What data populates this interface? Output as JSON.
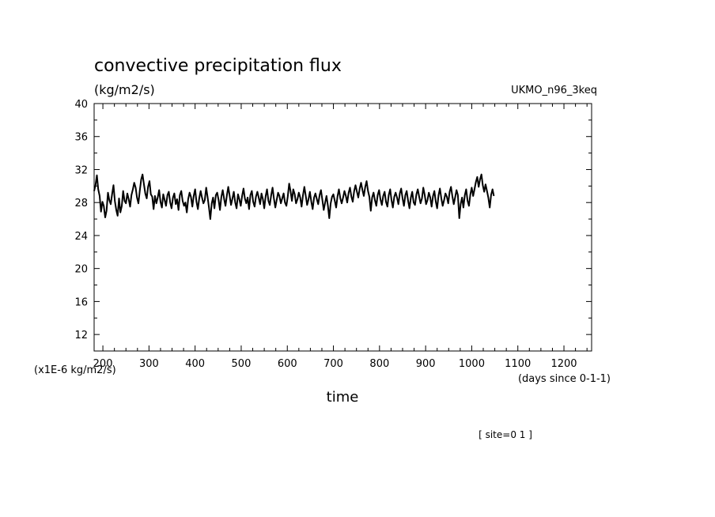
{
  "chart_data": {
    "type": "line",
    "title": "convective precipitation flux",
    "units": "(kg/m2/s)",
    "model": "UKMO_n96_3keq",
    "y_scale_note": "(x1E-6 kg/m2/s)",
    "x_unit_note": "(days since 0-1-1)",
    "xlabel": "time",
    "site_note": "[ site=0 1 ]",
    "xlim": [
      181,
      1260
    ],
    "ylim": [
      10,
      40
    ],
    "x_ticks": [
      200,
      300,
      400,
      500,
      600,
      700,
      800,
      900,
      1000,
      1100,
      1200
    ],
    "y_ticks": [
      12,
      16,
      20,
      24,
      28,
      32,
      36,
      40
    ],
    "series": [
      {
        "x_start": 181,
        "x_step": 3,
        "values": [
          29.4,
          30.1,
          31.3,
          29.6,
          28.8,
          26.9,
          28.1,
          27.6,
          26.2,
          27.0,
          29.2,
          28.3,
          27.8,
          29.0,
          30.1,
          28.2,
          27.1,
          26.4,
          28.5,
          26.8,
          27.6,
          29.4,
          28.2,
          27.9,
          29.1,
          28.4,
          27.5,
          28.9,
          29.6,
          30.4,
          29.8,
          28.6,
          27.9,
          29.4,
          30.8,
          31.4,
          30.2,
          29.1,
          28.5,
          29.9,
          30.6,
          29.0,
          28.7,
          27.2,
          28.8,
          27.9,
          28.6,
          29.5,
          28.1,
          27.4,
          29.0,
          28.3,
          27.6,
          28.9,
          29.3,
          28.0,
          27.3,
          28.6,
          29.1,
          27.8,
          28.4,
          27.1,
          28.9,
          29.4,
          28.2,
          27.6,
          28.0,
          26.8,
          28.4,
          29.2,
          28.7,
          27.5,
          28.8,
          29.6,
          28.1,
          27.2,
          28.5,
          29.4,
          28.6,
          27.9,
          28.3,
          29.8,
          28.7,
          27.4,
          26.0,
          27.9,
          28.6,
          27.3,
          28.9,
          29.2,
          28.3,
          27.1,
          28.7,
          29.5,
          28.4,
          27.6,
          28.9,
          29.9,
          28.8,
          27.7,
          28.5,
          29.3,
          28.0,
          27.3,
          29.0,
          28.4,
          27.6,
          28.8,
          29.7,
          28.5,
          27.9,
          28.6,
          27.2,
          28.9,
          29.4,
          28.1,
          27.5,
          28.7,
          29.3,
          28.6,
          27.8,
          29.1,
          28.4,
          27.3,
          28.8,
          29.6,
          28.2,
          27.7,
          28.9,
          29.8,
          28.5,
          27.4,
          28.3,
          29.2,
          28.8,
          27.9,
          28.5,
          29.1,
          28.0,
          27.6,
          28.7,
          30.3,
          29.4,
          28.2,
          29.6,
          29.0,
          27.9,
          28.4,
          29.2,
          28.6,
          27.5,
          28.9,
          29.9,
          28.8,
          27.7,
          28.4,
          29.3,
          28.1,
          27.2,
          28.6,
          29.1,
          28.4,
          27.8,
          28.9,
          29.5,
          28.3,
          27.1,
          28.0,
          28.8,
          27.6,
          26.1,
          27.9,
          28.7,
          29.0,
          28.2,
          27.4,
          28.8,
          29.6,
          28.5,
          27.9,
          28.6,
          29.4,
          28.8,
          28.0,
          29.2,
          29.8,
          28.7,
          28.1,
          29.4,
          30.1,
          29.3,
          28.6,
          29.7,
          30.4,
          29.5,
          28.8,
          29.9,
          30.6,
          29.4,
          28.7,
          27.0,
          28.6,
          29.2,
          28.3,
          27.6,
          28.9,
          29.5,
          28.4,
          27.7,
          28.8,
          29.3,
          28.1,
          27.5,
          28.9,
          29.6,
          28.3,
          27.4,
          28.7,
          29.2,
          28.6,
          27.8,
          29.1,
          29.7,
          28.5,
          27.6,
          28.9,
          29.4,
          28.2,
          27.3,
          28.6,
          29.3,
          28.0,
          27.7,
          29.0,
          29.6,
          28.7,
          27.9,
          28.5,
          29.8,
          28.9,
          27.8,
          28.3,
          29.2,
          28.6,
          27.5,
          28.8,
          29.4,
          28.1,
          27.3,
          28.9,
          29.7,
          28.5,
          27.6,
          28.3,
          29.1,
          28.7,
          27.9,
          29.3,
          29.9,
          28.8,
          27.8,
          28.6,
          29.5,
          28.9,
          26.1,
          27.8,
          28.6,
          27.4,
          28.9,
          29.6,
          28.2,
          27.6,
          29.0,
          29.8,
          28.8,
          29.6,
          30.5,
          31.1,
          29.9,
          30.8,
          31.4,
          30.1,
          29.3,
          30.2,
          29.4,
          28.6,
          27.4,
          28.9,
          29.6,
          28.8
        ]
      }
    ]
  }
}
